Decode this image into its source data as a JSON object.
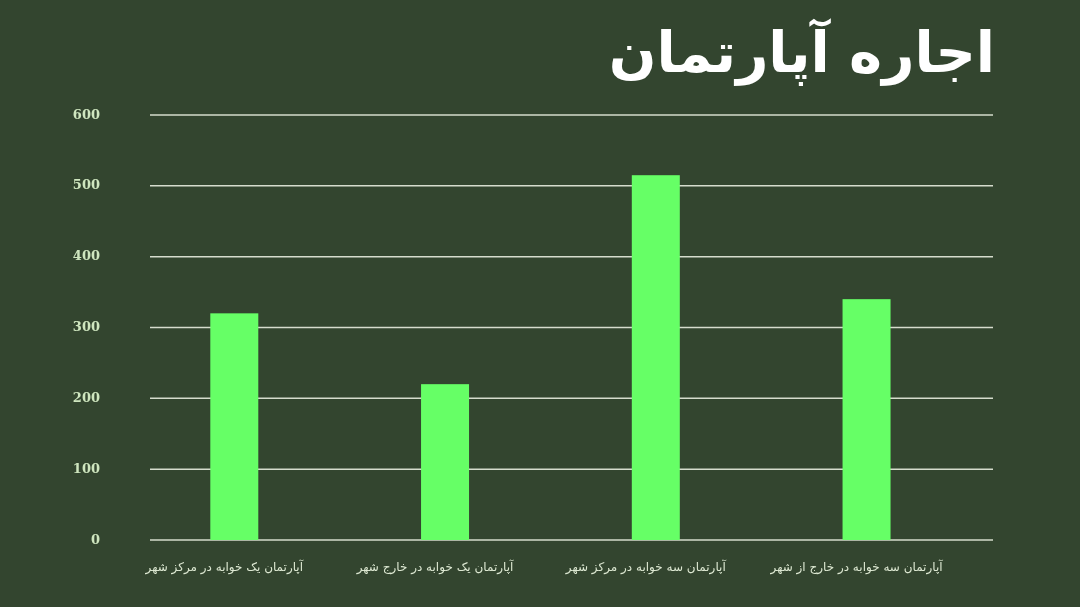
{
  "chart_data": {
    "type": "bar",
    "title": "اجاره آپارتمان",
    "categories": [
      "آپارتمان یک خوابه در مرکز شهر",
      "آپارتمان یک خوابه در خارج شهر",
      "آپارتمان سه خوابه در مرکز شهر",
      "آپارتمان سه خوابه در خارج از شهر"
    ],
    "values": [
      320,
      220,
      515,
      340
    ],
    "color": "#66ff66",
    "ylim": [
      0,
      600
    ],
    "yticks": [
      0,
      100,
      200,
      300,
      400,
      500,
      600
    ],
    "grid": "y"
  }
}
